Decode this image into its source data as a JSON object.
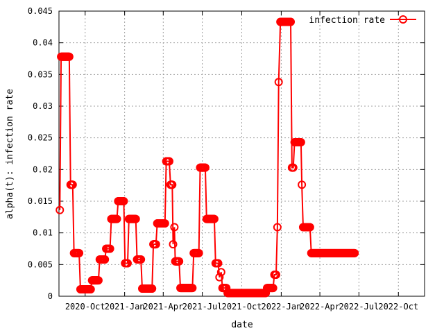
{
  "chart_data": {
    "type": "line",
    "title": "",
    "xlabel": "date",
    "ylabel": "alpha(t): infection rate",
    "x_ticks": [
      "2020-Oct",
      "2021-Jan",
      "2021-Apr",
      "2021-Jul",
      "2021-Oct",
      "2022-Jan",
      "2022-Apr",
      "2022-Jul",
      "2022-Oct"
    ],
    "y_ticks": [
      "0",
      "0.005",
      "0.01",
      "0.015",
      "0.02",
      "0.025",
      "0.03",
      "0.035",
      "0.04",
      "0.045"
    ],
    "xlim": [
      "2020-08-01",
      "2022-12-01"
    ],
    "ylim": [
      0,
      0.045
    ],
    "grid": true,
    "legend_position": "top-right",
    "series": [
      {
        "name": "infection rate",
        "color": "#ff0000",
        "marker": "circle",
        "points": [
          [
            "2020-08-03",
            0.0136
          ],
          [
            "2020-08-06",
            0.0378
          ],
          [
            "2020-08-25",
            0.0378
          ],
          [
            "2020-08-28",
            0.0176
          ],
          [
            "2020-09-02",
            0.0176
          ],
          [
            "2020-09-05",
            0.0068
          ],
          [
            "2020-09-17",
            0.0068
          ],
          [
            "2020-09-20",
            0.0011
          ],
          [
            "2020-10-14",
            0.0011
          ],
          [
            "2020-10-17",
            0.0025
          ],
          [
            "2020-11-01",
            0.0025
          ],
          [
            "2020-11-04",
            0.0058
          ],
          [
            "2020-11-16",
            0.0058
          ],
          [
            "2020-11-19",
            0.0075
          ],
          [
            "2020-11-28",
            0.0075
          ],
          [
            "2020-12-01",
            0.0122
          ],
          [
            "2020-12-14",
            0.0122
          ],
          [
            "2020-12-17",
            0.015
          ],
          [
            "2020-12-30",
            0.015
          ],
          [
            "2021-01-02",
            0.0052
          ],
          [
            "2021-01-08",
            0.0052
          ],
          [
            "2021-01-11",
            0.0122
          ],
          [
            "2021-01-27",
            0.0122
          ],
          [
            "2021-01-30",
            0.0058
          ],
          [
            "2021-02-08",
            0.0058
          ],
          [
            "2021-02-11",
            0.0012
          ],
          [
            "2021-03-06",
            0.0012
          ],
          [
            "2021-03-09",
            0.0082
          ],
          [
            "2021-03-15",
            0.0082
          ],
          [
            "2021-03-18",
            0.0115
          ],
          [
            "2021-04-05",
            0.0115
          ],
          [
            "2021-04-08",
            0.0213
          ],
          [
            "2021-04-15",
            0.0213
          ],
          [
            "2021-04-18",
            0.0176
          ],
          [
            "2021-04-22",
            0.0176
          ],
          [
            "2021-04-24",
            0.0082
          ],
          [
            "2021-04-27",
            0.0109
          ],
          [
            "2021-04-29",
            0.0055
          ],
          [
            "2021-05-08",
            0.0055
          ],
          [
            "2021-05-11",
            0.0013
          ],
          [
            "2021-06-08",
            0.0013
          ],
          [
            "2021-06-11",
            0.0068
          ],
          [
            "2021-06-23",
            0.0068
          ],
          [
            "2021-06-26",
            0.0203
          ],
          [
            "2021-07-08",
            0.0203
          ],
          [
            "2021-07-11",
            0.0122
          ],
          [
            "2021-07-29",
            0.0122
          ],
          [
            "2021-08-01",
            0.0052
          ],
          [
            "2021-08-07",
            0.0052
          ],
          [
            "2021-08-10",
            0.003
          ],
          [
            "2021-08-14",
            0.0038
          ],
          [
            "2021-08-17",
            0.0013
          ],
          [
            "2021-08-26",
            0.0013
          ],
          [
            "2021-08-29",
            0.0005
          ],
          [
            "2021-11-26",
            0.0005
          ],
          [
            "2021-11-29",
            0.0013
          ],
          [
            "2021-12-13",
            0.0013
          ],
          [
            "2021-12-16",
            0.0034
          ],
          [
            "2021-12-20",
            0.0034
          ],
          [
            "2021-12-23",
            0.0109
          ],
          [
            "2021-12-26",
            0.0338
          ],
          [
            "2021-12-30",
            0.0433
          ],
          [
            "2022-01-23",
            0.0433
          ],
          [
            "2022-01-26",
            0.0203
          ],
          [
            "2022-01-29",
            0.0203
          ],
          [
            "2022-02-01",
            0.0243
          ],
          [
            "2022-02-16",
            0.0243
          ],
          [
            "2022-02-18",
            0.0176
          ],
          [
            "2022-02-21",
            0.0109
          ],
          [
            "2022-03-09",
            0.0109
          ],
          [
            "2022-03-12",
            0.0068
          ],
          [
            "2022-06-21",
            0.0068
          ]
        ]
      }
    ]
  }
}
